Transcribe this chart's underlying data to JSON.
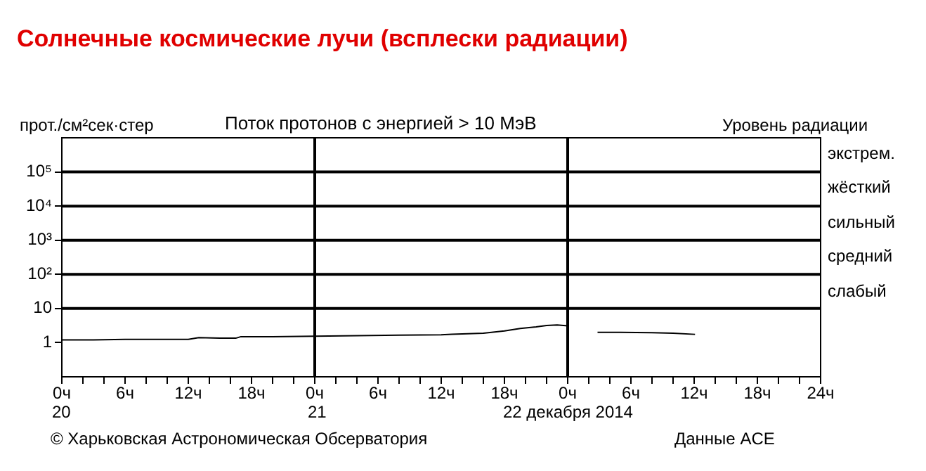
{
  "chart_data": {
    "type": "line",
    "title": "Солнечные космические лучи (всплески радиации)",
    "subtitle": "Поток протонов с энергией  > 10 МэВ",
    "ylabel": "прот./см²сек·стер",
    "y2label": "Уровень радиации",
    "x": [
      "2014-12-20T00:00",
      "2014-12-20T03:00",
      "2014-12-20T06:00",
      "2014-12-20T09:00",
      "2014-12-20T12:00",
      "2014-12-20T13:00",
      "2014-12-20T15:00",
      "2014-12-20T16:30",
      "2014-12-20T17:00",
      "2014-12-20T20:00",
      "2014-12-21T00:00",
      "2014-12-21T04:00",
      "2014-12-21T08:00",
      "2014-12-21T12:00",
      "2014-12-21T13:00",
      "2014-12-21T16:00",
      "2014-12-21T18:00",
      "2014-12-21T19:30",
      "2014-12-21T21:00",
      "2014-12-21T22:00",
      "2014-12-21T23:00",
      "2014-12-22T00:00",
      "2014-12-22T01:00",
      "2014-12-22T02:50",
      "2014-12-22T05:00",
      "2014-12-22T08:00",
      "2014-12-22T10:00",
      "2014-12-22T12:05"
    ],
    "series": [
      {
        "color": "#000000",
        "values": [
          1.2,
          1.2,
          1.25,
          1.25,
          1.25,
          1.4,
          1.35,
          1.35,
          1.5,
          1.5,
          1.55,
          1.6,
          1.65,
          1.7,
          1.75,
          1.9,
          2.2,
          2.6,
          2.9,
          3.2,
          3.3,
          3.1,
          null,
          2.0,
          2.0,
          1.95,
          1.9,
          1.75
        ]
      }
    ],
    "log": "y",
    "ylim": [
      0.1,
      1000000
    ],
    "yticks": [
      1,
      10,
      {
        "value": 100,
        "label": "10²"
      },
      {
        "value": 1000,
        "label": "10³"
      },
      {
        "value": 10000,
        "label": "10⁴"
      },
      {
        "value": 100000,
        "label": "10⁵"
      }
    ],
    "xlim": [
      "2014-12-20T00:00",
      "2014-12-23T00:00"
    ],
    "xticks": [
      {
        "value": "2014-12-20T00:00",
        "label": "0ч"
      },
      {
        "value": "2014-12-20T02:00",
        "label": null
      },
      {
        "value": "2014-12-20T04:00",
        "label": null
      },
      {
        "value": "2014-12-20T06:00",
        "label": "6ч"
      },
      {
        "value": "2014-12-20T08:00",
        "label": null
      },
      {
        "value": "2014-12-20T10:00",
        "label": null
      },
      {
        "value": "2014-12-20T12:00",
        "label": "12ч"
      },
      {
        "value": "2014-12-20T14:00",
        "label": null
      },
      {
        "value": "2014-12-20T16:00",
        "label": null
      },
      {
        "value": "2014-12-20T18:00",
        "label": "18ч"
      },
      {
        "value": "2014-12-20T20:00",
        "label": null
      },
      {
        "value": "2014-12-20T22:00",
        "label": null
      },
      {
        "value": "2014-12-21T00:00",
        "label": "0ч"
      },
      {
        "value": "2014-12-21T02:00",
        "label": null
      },
      {
        "value": "2014-12-21T04:00",
        "label": null
      },
      {
        "value": "2014-12-21T06:00",
        "label": "6ч"
      },
      {
        "value": "2014-12-21T08:00",
        "label": null
      },
      {
        "value": "2014-12-21T10:00",
        "label": null
      },
      {
        "value": "2014-12-21T12:00",
        "label": "12ч"
      },
      {
        "value": "2014-12-21T14:00",
        "label": null
      },
      {
        "value": "2014-12-21T16:00",
        "label": null
      },
      {
        "value": "2014-12-21T18:00",
        "label": "18ч"
      },
      {
        "value": "2014-12-21T20:00",
        "label": null
      },
      {
        "value": "2014-12-21T22:00",
        "label": null
      },
      {
        "value": "2014-12-22T00:00",
        "label": "0ч"
      },
      {
        "value": "2014-12-22T02:00",
        "label": null
      },
      {
        "value": "2014-12-22T04:00",
        "label": null
      },
      {
        "value": "2014-12-22T06:00",
        "label": "6ч"
      },
      {
        "value": "2014-12-22T08:00",
        "label": null
      },
      {
        "value": "2014-12-22T10:00",
        "label": null
      },
      {
        "value": "2014-12-22T12:00",
        "label": "12ч"
      },
      {
        "value": "2014-12-22T14:00",
        "label": null
      },
      {
        "value": "2014-12-22T16:00",
        "label": null
      },
      {
        "value": "2014-12-22T18:00",
        "label": "18ч"
      },
      {
        "value": "2014-12-22T20:00",
        "label": null
      },
      {
        "value": "2014-12-22T22:00",
        "label": null
      },
      {
        "value": "2014-12-23T00:00",
        "label": "24ч"
      }
    ],
    "ref_lines": [
      {
        "axis": "x",
        "value": "2014-12-21T00:00"
      },
      {
        "axis": "x",
        "value": "2014-12-22T00:00"
      },
      {
        "axis": "y",
        "value": 10
      },
      {
        "axis": "y",
        "value": 100
      },
      {
        "axis": "y",
        "value": 1000
      },
      {
        "axis": "y",
        "value": 10000
      },
      {
        "axis": "y",
        "value": 100000
      }
    ],
    "annotations": [
      "20",
      "21",
      "22 декабря 2014",
      "© Харьковская Астрономическая Обсерватория",
      "Данные ACE",
      "экстрем.",
      "жёсткий",
      "сильный",
      "средний",
      "слабый"
    ],
    "grid": false,
    "legend": false,
    "marker": "none",
    "line_style": "solid"
  }
}
